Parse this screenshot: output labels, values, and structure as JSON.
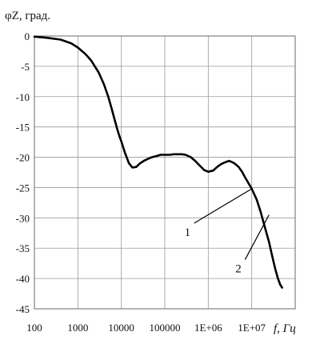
{
  "chart_data": {
    "type": "line",
    "title": "",
    "ylabel": "φZ, град.",
    "xlabel": "f, Гц",
    "xscale": "log",
    "xlim": [
      100,
      100000000
    ],
    "ylim": [
      -45,
      0
    ],
    "grid": true,
    "x_ticks": [
      "100",
      "1000",
      "10000",
      "100000",
      "1E+06",
      "1E+07"
    ],
    "y_ticks": [
      "0",
      "-5",
      "-10",
      "-15",
      "-20",
      "-25",
      "-30",
      "-35",
      "-40",
      "-45"
    ],
    "series": [
      {
        "x": [
          100,
          200,
          400,
          700,
          1000,
          1500,
          2000,
          3000,
          4000,
          5000,
          6000,
          7000,
          8000,
          9000,
          10000,
          12000,
          15000,
          18000,
          22000,
          27000,
          33000,
          40000,
          50000,
          65000,
          80000,
          100000,
          130000,
          160000,
          200000,
          250000,
          300000,
          400000,
          500000,
          600000,
          800000,
          1000000,
          1300000,
          1600000,
          2000000,
          2500000,
          3000000,
          3500000,
          4000000,
          5000000,
          6000000,
          7000000,
          8000000,
          10000000,
          13000000,
          16000000,
          20000000,
          25000000,
          30000000,
          35000000,
          40000000,
          45000000,
          50000000
        ],
        "y": [
          -0.1,
          -0.3,
          -0.6,
          -1.2,
          -1.9,
          -3.0,
          -4.0,
          -6.0,
          -8.0,
          -10.0,
          -12.0,
          -13.8,
          -15.3,
          -16.5,
          -17.4,
          -19.2,
          -21.0,
          -21.7,
          -21.6,
          -21.0,
          -20.6,
          -20.3,
          -20.0,
          -19.8,
          -19.6,
          -19.6,
          -19.6,
          -19.5,
          -19.5,
          -19.5,
          -19.6,
          -20.0,
          -20.6,
          -21.2,
          -22.1,
          -22.4,
          -22.2,
          -21.6,
          -21.1,
          -20.8,
          -20.6,
          -20.8,
          -21.0,
          -21.6,
          -22.4,
          -23.3,
          -24.0,
          -25.2,
          -27.0,
          -29.0,
          -31.5,
          -34.0,
          -36.5,
          -38.5,
          -40.0,
          -41.0,
          -41.5
        ]
      }
    ],
    "annotations": [
      {
        "label": "1",
        "x": 10000000,
        "y": -25.2
      },
      {
        "label": "2",
        "x": 25000000,
        "y": -29.5
      }
    ]
  }
}
